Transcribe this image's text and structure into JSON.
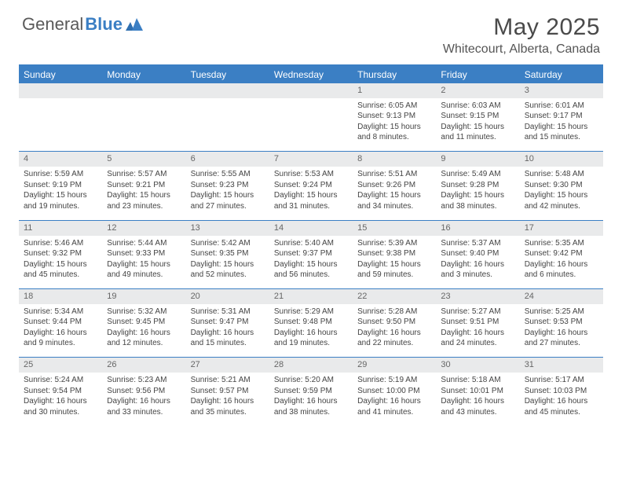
{
  "brand": {
    "part1": "General",
    "part2": "Blue"
  },
  "title": "May 2025",
  "location": "Whitecourt, Alberta, Canada",
  "colors": {
    "accent": "#3b7fc4",
    "header_text": "#ffffff",
    "daynum_bg": "#e9eaeb",
    "body_text": "#444444",
    "title_text": "#4a4a4a",
    "location_text": "#555555"
  },
  "days": [
    "Sunday",
    "Monday",
    "Tuesday",
    "Wednesday",
    "Thursday",
    "Friday",
    "Saturday"
  ],
  "weeks": [
    [
      null,
      null,
      null,
      null,
      {
        "n": "1",
        "sr": "Sunrise: 6:05 AM",
        "ss": "Sunset: 9:13 PM",
        "dl1": "Daylight: 15 hours",
        "dl2": "and 8 minutes."
      },
      {
        "n": "2",
        "sr": "Sunrise: 6:03 AM",
        "ss": "Sunset: 9:15 PM",
        "dl1": "Daylight: 15 hours",
        "dl2": "and 11 minutes."
      },
      {
        "n": "3",
        "sr": "Sunrise: 6:01 AM",
        "ss": "Sunset: 9:17 PM",
        "dl1": "Daylight: 15 hours",
        "dl2": "and 15 minutes."
      }
    ],
    [
      {
        "n": "4",
        "sr": "Sunrise: 5:59 AM",
        "ss": "Sunset: 9:19 PM",
        "dl1": "Daylight: 15 hours",
        "dl2": "and 19 minutes."
      },
      {
        "n": "5",
        "sr": "Sunrise: 5:57 AM",
        "ss": "Sunset: 9:21 PM",
        "dl1": "Daylight: 15 hours",
        "dl2": "and 23 minutes."
      },
      {
        "n": "6",
        "sr": "Sunrise: 5:55 AM",
        "ss": "Sunset: 9:23 PM",
        "dl1": "Daylight: 15 hours",
        "dl2": "and 27 minutes."
      },
      {
        "n": "7",
        "sr": "Sunrise: 5:53 AM",
        "ss": "Sunset: 9:24 PM",
        "dl1": "Daylight: 15 hours",
        "dl2": "and 31 minutes."
      },
      {
        "n": "8",
        "sr": "Sunrise: 5:51 AM",
        "ss": "Sunset: 9:26 PM",
        "dl1": "Daylight: 15 hours",
        "dl2": "and 34 minutes."
      },
      {
        "n": "9",
        "sr": "Sunrise: 5:49 AM",
        "ss": "Sunset: 9:28 PM",
        "dl1": "Daylight: 15 hours",
        "dl2": "and 38 minutes."
      },
      {
        "n": "10",
        "sr": "Sunrise: 5:48 AM",
        "ss": "Sunset: 9:30 PM",
        "dl1": "Daylight: 15 hours",
        "dl2": "and 42 minutes."
      }
    ],
    [
      {
        "n": "11",
        "sr": "Sunrise: 5:46 AM",
        "ss": "Sunset: 9:32 PM",
        "dl1": "Daylight: 15 hours",
        "dl2": "and 45 minutes."
      },
      {
        "n": "12",
        "sr": "Sunrise: 5:44 AM",
        "ss": "Sunset: 9:33 PM",
        "dl1": "Daylight: 15 hours",
        "dl2": "and 49 minutes."
      },
      {
        "n": "13",
        "sr": "Sunrise: 5:42 AM",
        "ss": "Sunset: 9:35 PM",
        "dl1": "Daylight: 15 hours",
        "dl2": "and 52 minutes."
      },
      {
        "n": "14",
        "sr": "Sunrise: 5:40 AM",
        "ss": "Sunset: 9:37 PM",
        "dl1": "Daylight: 15 hours",
        "dl2": "and 56 minutes."
      },
      {
        "n": "15",
        "sr": "Sunrise: 5:39 AM",
        "ss": "Sunset: 9:38 PM",
        "dl1": "Daylight: 15 hours",
        "dl2": "and 59 minutes."
      },
      {
        "n": "16",
        "sr": "Sunrise: 5:37 AM",
        "ss": "Sunset: 9:40 PM",
        "dl1": "Daylight: 16 hours",
        "dl2": "and 3 minutes."
      },
      {
        "n": "17",
        "sr": "Sunrise: 5:35 AM",
        "ss": "Sunset: 9:42 PM",
        "dl1": "Daylight: 16 hours",
        "dl2": "and 6 minutes."
      }
    ],
    [
      {
        "n": "18",
        "sr": "Sunrise: 5:34 AM",
        "ss": "Sunset: 9:44 PM",
        "dl1": "Daylight: 16 hours",
        "dl2": "and 9 minutes."
      },
      {
        "n": "19",
        "sr": "Sunrise: 5:32 AM",
        "ss": "Sunset: 9:45 PM",
        "dl1": "Daylight: 16 hours",
        "dl2": "and 12 minutes."
      },
      {
        "n": "20",
        "sr": "Sunrise: 5:31 AM",
        "ss": "Sunset: 9:47 PM",
        "dl1": "Daylight: 16 hours",
        "dl2": "and 15 minutes."
      },
      {
        "n": "21",
        "sr": "Sunrise: 5:29 AM",
        "ss": "Sunset: 9:48 PM",
        "dl1": "Daylight: 16 hours",
        "dl2": "and 19 minutes."
      },
      {
        "n": "22",
        "sr": "Sunrise: 5:28 AM",
        "ss": "Sunset: 9:50 PM",
        "dl1": "Daylight: 16 hours",
        "dl2": "and 22 minutes."
      },
      {
        "n": "23",
        "sr": "Sunrise: 5:27 AM",
        "ss": "Sunset: 9:51 PM",
        "dl1": "Daylight: 16 hours",
        "dl2": "and 24 minutes."
      },
      {
        "n": "24",
        "sr": "Sunrise: 5:25 AM",
        "ss": "Sunset: 9:53 PM",
        "dl1": "Daylight: 16 hours",
        "dl2": "and 27 minutes."
      }
    ],
    [
      {
        "n": "25",
        "sr": "Sunrise: 5:24 AM",
        "ss": "Sunset: 9:54 PM",
        "dl1": "Daylight: 16 hours",
        "dl2": "and 30 minutes."
      },
      {
        "n": "26",
        "sr": "Sunrise: 5:23 AM",
        "ss": "Sunset: 9:56 PM",
        "dl1": "Daylight: 16 hours",
        "dl2": "and 33 minutes."
      },
      {
        "n": "27",
        "sr": "Sunrise: 5:21 AM",
        "ss": "Sunset: 9:57 PM",
        "dl1": "Daylight: 16 hours",
        "dl2": "and 35 minutes."
      },
      {
        "n": "28",
        "sr": "Sunrise: 5:20 AM",
        "ss": "Sunset: 9:59 PM",
        "dl1": "Daylight: 16 hours",
        "dl2": "and 38 minutes."
      },
      {
        "n": "29",
        "sr": "Sunrise: 5:19 AM",
        "ss": "Sunset: 10:00 PM",
        "dl1": "Daylight: 16 hours",
        "dl2": "and 41 minutes."
      },
      {
        "n": "30",
        "sr": "Sunrise: 5:18 AM",
        "ss": "Sunset: 10:01 PM",
        "dl1": "Daylight: 16 hours",
        "dl2": "and 43 minutes."
      },
      {
        "n": "31",
        "sr": "Sunrise: 5:17 AM",
        "ss": "Sunset: 10:03 PM",
        "dl1": "Daylight: 16 hours",
        "dl2": "and 45 minutes."
      }
    ]
  ]
}
